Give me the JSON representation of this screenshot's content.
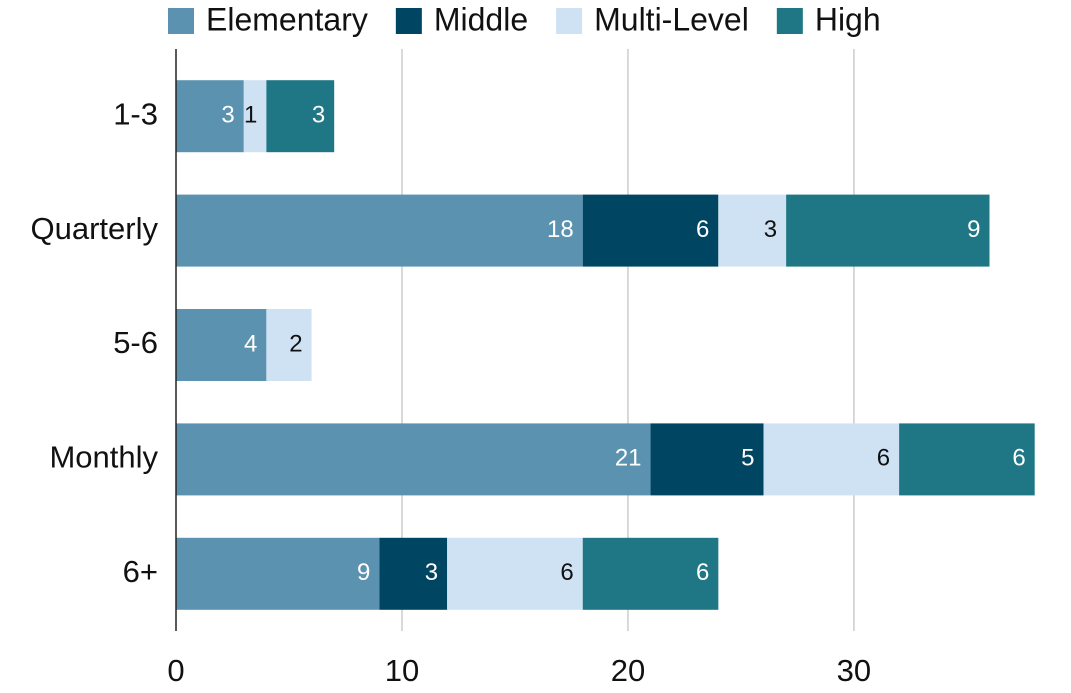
{
  "chart_data": {
    "type": "stacked_barh",
    "categories": [
      "1-3",
      "Quarterly",
      "5-6",
      "Monthly",
      "6+"
    ],
    "series": [
      {
        "name": "Elementary",
        "color": "#5b92b0",
        "values": [
          3,
          18,
          4,
          21,
          9
        ]
      },
      {
        "name": "Middle",
        "color": "#004561",
        "values": [
          null,
          6,
          null,
          5,
          3
        ]
      },
      {
        "name": "Multi-Level",
        "color": "#cfe2f3",
        "values": [
          1,
          3,
          2,
          6,
          6
        ]
      },
      {
        "name": "High",
        "color": "#1f7785",
        "values": [
          3,
          9,
          null,
          6,
          6
        ]
      }
    ],
    "xlim": [
      0,
      38.5
    ],
    "xticks": [
      0,
      10,
      20,
      30
    ],
    "grid": true,
    "legend": "top"
  }
}
